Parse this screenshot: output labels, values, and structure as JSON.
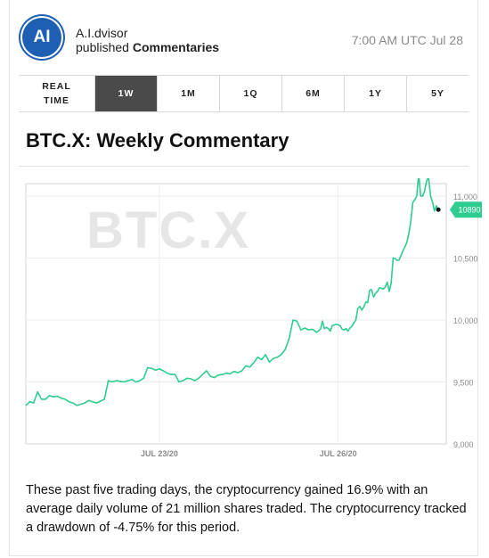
{
  "header": {
    "avatar_text": "AI",
    "author_name": "A.I.dvisor",
    "author_action_prefix": "published",
    "author_action_object": "Commentaries",
    "timestamp": "7:00 AM UTC Jul 28"
  },
  "tabs": [
    {
      "line1": "REAL",
      "line2": "TIME",
      "active": false
    },
    {
      "line1": "1W",
      "line2": "",
      "active": true
    },
    {
      "line1": "1M",
      "line2": "",
      "active": false
    },
    {
      "line1": "1Q",
      "line2": "",
      "active": false
    },
    {
      "line1": "6M",
      "line2": "",
      "active": false
    },
    {
      "line1": "1Y",
      "line2": "",
      "active": false
    },
    {
      "line1": "5Y",
      "line2": "",
      "active": false
    }
  ],
  "title": "BTC.X: Weekly Commentary",
  "summary": "These past five trading days, the cryptocurrency gained 16.9% with an average daily volume of 21 million shares traded. The cryptocurrency tracked a drawdown of -4.75% for this period.",
  "chart_data": {
    "type": "line",
    "watermark": "BTC.X",
    "line_color": "#2ecc8f",
    "x_ticks": [
      {
        "at": 0.34,
        "label": "JUL 23/20"
      },
      {
        "at": 0.795,
        "label": "JUL 26/20"
      }
    ],
    "y_ticks": [
      9000,
      9500,
      10000,
      10500,
      11000
    ],
    "y_tick_labels": [
      "9,000",
      "9,500",
      "10,000",
      "10,500",
      "11,000"
    ],
    "ylim": [
      9000,
      11100
    ],
    "last_value": 10890,
    "last_value_label": "10890",
    "grid": true,
    "points": [
      [
        0.0,
        9310
      ],
      [
        0.01,
        9340
      ],
      [
        0.02,
        9330
      ],
      [
        0.03,
        9420
      ],
      [
        0.04,
        9360
      ],
      [
        0.05,
        9360
      ],
      [
        0.06,
        9390
      ],
      [
        0.07,
        9380
      ],
      [
        0.08,
        9385
      ],
      [
        0.09,
        9370
      ],
      [
        0.1,
        9360
      ],
      [
        0.11,
        9340
      ],
      [
        0.12,
        9330
      ],
      [
        0.13,
        9310
      ],
      [
        0.14,
        9320
      ],
      [
        0.15,
        9330
      ],
      [
        0.16,
        9350
      ],
      [
        0.17,
        9340
      ],
      [
        0.18,
        9330
      ],
      [
        0.19,
        9345
      ],
      [
        0.2,
        9360
      ],
      [
        0.21,
        9510
      ],
      [
        0.22,
        9500
      ],
      [
        0.23,
        9510
      ],
      [
        0.24,
        9505
      ],
      [
        0.25,
        9500
      ],
      [
        0.26,
        9510
      ],
      [
        0.27,
        9520
      ],
      [
        0.28,
        9500
      ],
      [
        0.29,
        9510
      ],
      [
        0.3,
        9530
      ],
      [
        0.31,
        9615
      ],
      [
        0.32,
        9610
      ],
      [
        0.33,
        9595
      ],
      [
        0.34,
        9605
      ],
      [
        0.35,
        9590
      ],
      [
        0.36,
        9570
      ],
      [
        0.37,
        9560
      ],
      [
        0.38,
        9560
      ],
      [
        0.39,
        9500
      ],
      [
        0.4,
        9510
      ],
      [
        0.41,
        9530
      ],
      [
        0.42,
        9525
      ],
      [
        0.43,
        9510
      ],
      [
        0.44,
        9530
      ],
      [
        0.45,
        9560
      ],
      [
        0.46,
        9590
      ],
      [
        0.47,
        9545
      ],
      [
        0.48,
        9535
      ],
      [
        0.49,
        9555
      ],
      [
        0.5,
        9560
      ],
      [
        0.51,
        9570
      ],
      [
        0.52,
        9565
      ],
      [
        0.53,
        9585
      ],
      [
        0.54,
        9575
      ],
      [
        0.55,
        9590
      ],
      [
        0.56,
        9630
      ],
      [
        0.57,
        9620
      ],
      [
        0.58,
        9655
      ],
      [
        0.59,
        9700
      ],
      [
        0.6,
        9680
      ],
      [
        0.61,
        9720
      ],
      [
        0.62,
        9660
      ],
      [
        0.63,
        9690
      ],
      [
        0.64,
        9700
      ],
      [
        0.65,
        9720
      ],
      [
        0.66,
        9760
      ],
      [
        0.67,
        9850
      ],
      [
        0.68,
        10000
      ],
      [
        0.69,
        9990
      ],
      [
        0.7,
        9920
      ],
      [
        0.71,
        9935
      ],
      [
        0.72,
        9920
      ],
      [
        0.73,
        9925
      ],
      [
        0.74,
        9900
      ],
      [
        0.75,
        9925
      ],
      [
        0.755,
        9990
      ],
      [
        0.76,
        9930
      ],
      [
        0.765,
        9940
      ],
      [
        0.77,
        9930
      ],
      [
        0.775,
        9910
      ],
      [
        0.78,
        9955
      ],
      [
        0.785,
        9960
      ],
      [
        0.79,
        9965
      ],
      [
        0.8,
        9955
      ],
      [
        0.805,
        9925
      ],
      [
        0.81,
        9920
      ],
      [
        0.815,
        9930
      ],
      [
        0.82,
        9910
      ],
      [
        0.825,
        9935
      ],
      [
        0.83,
        9950
      ],
      [
        0.835,
        9975
      ],
      [
        0.84,
        10000
      ],
      [
        0.845,
        10090
      ],
      [
        0.85,
        10110
      ],
      [
        0.855,
        10080
      ],
      [
        0.86,
        10105
      ],
      [
        0.865,
        10145
      ],
      [
        0.87,
        10140
      ],
      [
        0.875,
        10240
      ],
      [
        0.88,
        10245
      ],
      [
        0.885,
        10185
      ],
      [
        0.89,
        10215
      ],
      [
        0.895,
        10230
      ],
      [
        0.9,
        10260
      ],
      [
        0.905,
        10255
      ],
      [
        0.91,
        10250
      ],
      [
        0.915,
        10265
      ],
      [
        0.92,
        10305
      ],
      [
        0.925,
        10230
      ],
      [
        0.93,
        10300
      ],
      [
        0.935,
        10500
      ],
      [
        0.94,
        10495
      ],
      [
        0.945,
        10480
      ],
      [
        0.95,
        10485
      ],
      [
        0.955,
        10520
      ],
      [
        0.96,
        10560
      ],
      [
        0.965,
        10590
      ],
      [
        0.97,
        10630
      ],
      [
        0.975,
        10700
      ],
      [
        0.98,
        10800
      ],
      [
        0.985,
        10950
      ],
      [
        0.99,
        10970
      ],
      [
        0.995,
        11000
      ],
      [
        1.0,
        11180
      ],
      [
        1.005,
        11000
      ],
      [
        1.01,
        11000
      ],
      [
        1.015,
        11040
      ],
      [
        1.02,
        11120
      ],
      [
        1.025,
        11150
      ],
      [
        1.03,
        11000
      ],
      [
        1.035,
        10950
      ],
      [
        1.04,
        10880
      ],
      [
        1.045,
        10920
      ],
      [
        1.05,
        10890
      ]
    ]
  }
}
